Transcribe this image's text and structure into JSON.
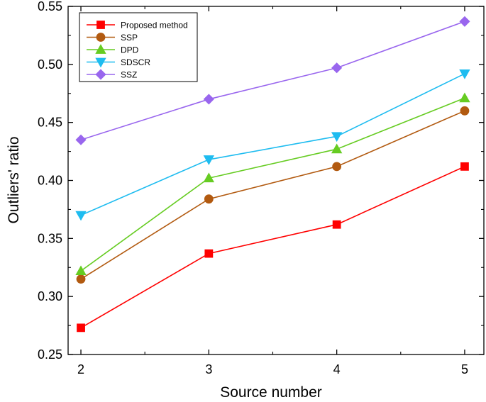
{
  "chart_data": {
    "type": "line",
    "title": "",
    "xlabel": "Source number",
    "ylabel": "Outliers' ratio",
    "x": [
      2,
      3,
      4,
      5
    ],
    "xticks": [
      "2",
      "3",
      "4",
      "5"
    ],
    "xlim": [
      1.9,
      5.15
    ],
    "ylim": [
      0.25,
      0.55
    ],
    "yticks": [
      "0.25",
      "0.30",
      "0.35",
      "0.40",
      "0.45",
      "0.50",
      "0.55"
    ],
    "grid": false,
    "legend_position": "top-left",
    "series": [
      {
        "name": "Proposed method",
        "color": "#ff0000",
        "marker": "square",
        "values": [
          0.273,
          0.337,
          0.362,
          0.412
        ]
      },
      {
        "name": "SSP",
        "color": "#b25a10",
        "marker": "circle",
        "values": [
          0.315,
          0.384,
          0.412,
          0.46
        ]
      },
      {
        "name": "DPD",
        "color": "#66cc22",
        "marker": "triangle-up",
        "values": [
          0.322,
          0.402,
          0.427,
          0.471
        ]
      },
      {
        "name": "SDSCR",
        "color": "#1ebcf0",
        "marker": "triangle-down",
        "values": [
          0.37,
          0.418,
          0.438,
          0.492
        ]
      },
      {
        "name": "SSZ",
        "color": "#9966ee",
        "marker": "diamond",
        "values": [
          0.435,
          0.47,
          0.497,
          0.537
        ]
      }
    ]
  }
}
